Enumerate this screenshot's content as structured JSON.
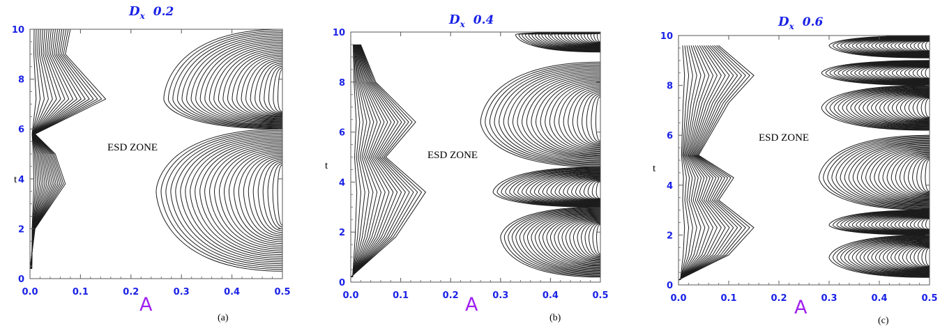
{
  "chart_data": [
    {
      "type": "contour",
      "title": {
        "symbol": "D",
        "subscript": "x",
        "value": "0.2"
      },
      "xlabel": "A",
      "ylabel": "t",
      "xlim": [
        0,
        0.5
      ],
      "ylim": [
        0,
        10
      ],
      "xticks": [
        "0.0",
        "0.1",
        "0.2",
        "0.3",
        "0.4",
        "0.5"
      ],
      "yticks": [
        "0",
        "2",
        "4",
        "6",
        "8",
        "10"
      ],
      "annotation": "ESD ZONE",
      "panel_label": "(a)",
      "left_band": [
        {
          "t": 0.4,
          "A": 0.0
        },
        {
          "t": 2.0,
          "A": 0.01
        },
        {
          "t": 3.8,
          "A": 0.07
        },
        {
          "t": 5.0,
          "A": 0.05
        },
        {
          "t": 5.8,
          "A": 0.01
        },
        {
          "t": 7.2,
          "A": 0.15
        },
        {
          "t": 9.0,
          "A": 0.07
        },
        {
          "t": 10.0,
          "A": 0.08
        }
      ],
      "right_lobes": [
        {
          "t_from": 0.3,
          "t_to": 6.0,
          "A_tip": 0.25,
          "t_tip": 3.5
        },
        {
          "t_from": 6.0,
          "t_to": 10.0,
          "A_tip": 0.265,
          "t_tip": 7.2
        }
      ]
    },
    {
      "type": "contour",
      "title": {
        "symbol": "D",
        "subscript": "x",
        "value": "0.4"
      },
      "xlabel": "A",
      "ylabel": "t",
      "xlim": [
        0,
        0.5
      ],
      "ylim": [
        0,
        10
      ],
      "xticks": [
        "0.0",
        "0.1",
        "0.2",
        "0.3",
        "0.4",
        "0.5"
      ],
      "yticks": [
        "0",
        "2",
        "4",
        "6",
        "8",
        "10"
      ],
      "annotation": "ESD ZONE",
      "panel_label": "(b)",
      "left_band": [
        {
          "t": 0.2,
          "A": 0.0
        },
        {
          "t": 1.8,
          "A": 0.09
        },
        {
          "t": 3.6,
          "A": 0.15
        },
        {
          "t": 5.0,
          "A": 0.07
        },
        {
          "t": 6.4,
          "A": 0.13
        },
        {
          "t": 8.0,
          "A": 0.05
        },
        {
          "t": 9.5,
          "A": 0.02
        }
      ],
      "right_lobes": [
        {
          "t_from": 0.2,
          "t_to": 3.0,
          "A_tip": 0.3,
          "t_tip": 1.8
        },
        {
          "t_from": 3.0,
          "t_to": 4.6,
          "A_tip": 0.285,
          "t_tip": 3.6
        },
        {
          "t_from": 4.6,
          "t_to": 8.8,
          "A_tip": 0.26,
          "t_tip": 6.4
        },
        {
          "t_from": 9.2,
          "t_to": 10.0,
          "A_tip": 0.33,
          "t_tip": 9.9
        }
      ]
    },
    {
      "type": "contour",
      "title": {
        "symbol": "D",
        "subscript": "x",
        "value": "0.6"
      },
      "xlabel": "A",
      "ylabel": "t",
      "xlim": [
        0,
        0.5
      ],
      "ylim": [
        0,
        10
      ],
      "xticks": [
        "0.0",
        "0.1",
        "0.2",
        "0.3",
        "0.4",
        "0.5"
      ],
      "yticks": [
        "0",
        "2",
        "4",
        "6",
        "8",
        "10"
      ],
      "annotation": "ESD ZONE",
      "panel_label": "(c)",
      "left_band": [
        {
          "t": 0.2,
          "A": 0.0
        },
        {
          "t": 1.2,
          "A": 0.1
        },
        {
          "t": 2.3,
          "A": 0.15
        },
        {
          "t": 3.4,
          "A": 0.08
        },
        {
          "t": 4.3,
          "A": 0.11
        },
        {
          "t": 5.2,
          "A": 0.04
        },
        {
          "t": 7.3,
          "A": 0.1
        },
        {
          "t": 8.4,
          "A": 0.15
        },
        {
          "t": 9.6,
          "A": 0.08
        }
      ],
      "right_lobes": [
        {
          "t_from": 0.3,
          "t_to": 2.0,
          "A_tip": 0.3,
          "t_tip": 1.1
        },
        {
          "t_from": 2.0,
          "t_to": 3.0,
          "A_tip": 0.3,
          "t_tip": 2.4
        },
        {
          "t_from": 3.0,
          "t_to": 6.0,
          "A_tip": 0.28,
          "t_tip": 4.3
        },
        {
          "t_from": 6.2,
          "t_to": 8.0,
          "A_tip": 0.285,
          "t_tip": 7.1
        },
        {
          "t_from": 8.0,
          "t_to": 9.0,
          "A_tip": 0.285,
          "t_tip": 8.5
        },
        {
          "t_from": 9.1,
          "t_to": 10.0,
          "A_tip": 0.3,
          "t_tip": 9.6
        }
      ]
    }
  ]
}
